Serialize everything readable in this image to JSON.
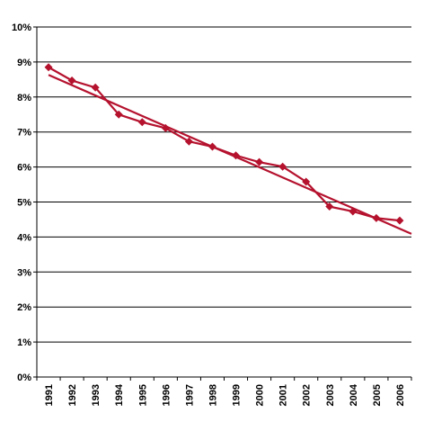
{
  "chart_data": {
    "type": "line",
    "x": [
      "1991",
      "1992",
      "1993",
      "1994",
      "1995",
      "1996",
      "1997",
      "1998",
      "1999",
      "2000",
      "2001",
      "2002",
      "2003",
      "2004",
      "2005",
      "2006"
    ],
    "series": [
      {
        "values": [
          8.85,
          8.47,
          8.27,
          7.5,
          7.28,
          7.11,
          6.73,
          6.58,
          6.33,
          6.14,
          6.01,
          5.58,
          4.87,
          4.73,
          4.54,
          4.47
        ],
        "color": "#b5122e",
        "marker": "diamond"
      }
    ],
    "trendline": {
      "type": "linear",
      "start_value": 8.63,
      "end_value": 4.09,
      "color": "#b5122e"
    },
    "ylim": [
      0,
      10
    ],
    "yticks": [
      "0%",
      "1%",
      "2%",
      "3%",
      "4%",
      "5%",
      "6%",
      "7%",
      "8%",
      "9%",
      "10%"
    ],
    "grid": true,
    "title": "",
    "xlabel": "",
    "ylabel": ""
  }
}
